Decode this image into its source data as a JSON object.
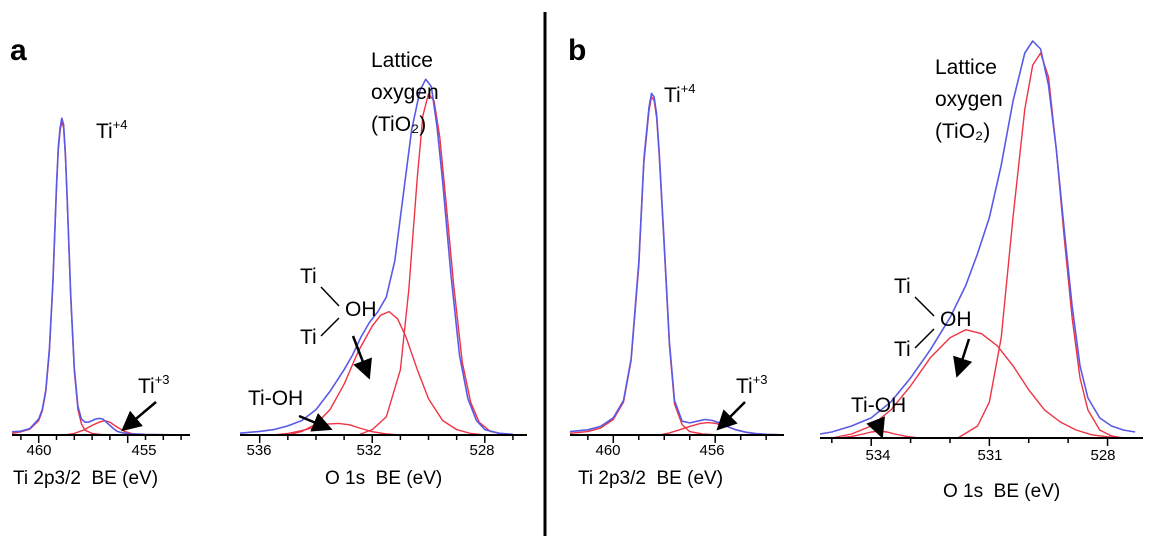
{
  "panels": [
    {
      "label": "a"
    },
    {
      "label": "b"
    }
  ],
  "colors": {
    "envelope": "#5a5ae6",
    "component": "#ee3344",
    "axis": "#000000"
  },
  "chart_data": [
    {
      "type": "line",
      "panel": "a",
      "xlabel": "Ti 2p3/2  BE (eV)",
      "xreversed": true,
      "xlim": [
        461.5,
        451.5
      ],
      "ticks": [
        460,
        455
      ],
      "annotations": [
        {
          "text": "Ti",
          "sup": "+4",
          "x": 458.7
        },
        {
          "text": "Ti",
          "sup": "+3",
          "x": 456.3
        }
      ],
      "series": [
        {
          "role": "envelope",
          "x": [
            461.5,
            461,
            460.5,
            460,
            459.8,
            459.6,
            459.4,
            459.2,
            459.0,
            458.9,
            458.8,
            458.7,
            458.6,
            458.5,
            458.4,
            458.2,
            458.0,
            457.8,
            457.6,
            457.4,
            457.2,
            457.0,
            456.8,
            456.6,
            456.4,
            456.2,
            456.0,
            455.8,
            455.6,
            455.4,
            455.0,
            454.0,
            453.0,
            452.0
          ],
          "y": [
            0.01,
            0.012,
            0.02,
            0.05,
            0.08,
            0.14,
            0.27,
            0.48,
            0.78,
            0.9,
            0.96,
            0.99,
            0.97,
            0.88,
            0.74,
            0.44,
            0.21,
            0.09,
            0.05,
            0.04,
            0.04,
            0.045,
            0.05,
            0.052,
            0.05,
            0.04,
            0.03,
            0.02,
            0.012,
            0.008,
            0.004,
            0.002,
            0.001,
            0.0
          ]
        },
        {
          "role": "component",
          "name": "Ti+4",
          "x": [
            461.5,
            461,
            460.5,
            460,
            459.8,
            459.6,
            459.4,
            459.2,
            459.0,
            458.9,
            458.8,
            458.7,
            458.6,
            458.5,
            458.4,
            458.2,
            458.0,
            457.8,
            457.6,
            457.4,
            457.0,
            456.5,
            456.0,
            455.0,
            454.0,
            453.0,
            452.0
          ],
          "y": [
            0.005,
            0.01,
            0.018,
            0.045,
            0.075,
            0.135,
            0.26,
            0.47,
            0.77,
            0.89,
            0.95,
            0.98,
            0.96,
            0.87,
            0.73,
            0.43,
            0.2,
            0.08,
            0.035,
            0.015,
            0.005,
            0.002,
            0.001,
            0.0,
            0.0,
            0.0,
            0.0
          ]
        },
        {
          "role": "component",
          "name": "Ti+3",
          "x": [
            458.5,
            458,
            457.5,
            457,
            456.6,
            456.3,
            456.0,
            455.6,
            455.2,
            454.8,
            454.4,
            454.0
          ],
          "y": [
            0.0,
            0.005,
            0.015,
            0.03,
            0.04,
            0.045,
            0.04,
            0.025,
            0.012,
            0.005,
            0.002,
            0.0
          ]
        }
      ]
    },
    {
      "type": "line",
      "panel": "a",
      "xlabel": "O 1s  BE (eV)",
      "xreversed": true,
      "xlim": [
        536.7,
        526.5
      ],
      "ticks": [
        536,
        532,
        528
      ],
      "annotations": [
        {
          "text": "Lattice",
          "x": 530.2
        },
        {
          "text": "oxygen",
          "x": 530.2
        },
        {
          "text": "(TiO₂)",
          "x": 530.2
        },
        {
          "text": "Ti",
          "x": 532.5
        },
        {
          "text": "OH",
          "x": 531.9
        },
        {
          "text": "Ti",
          "x": 532.5
        },
        {
          "text": "Ti-OH",
          "x": 533.2
        }
      ],
      "series": [
        {
          "role": "envelope",
          "x": [
            536.7,
            536,
            535.5,
            535,
            534.5,
            534,
            533.5,
            533,
            532.7,
            532.4,
            532.1,
            531.8,
            531.5,
            531.2,
            530.9,
            530.6,
            530.3,
            530.1,
            529.9,
            529.7,
            529.5,
            529.2,
            528.9,
            528.6,
            528.3,
            528.0,
            527.5,
            527.0
          ],
          "y": [
            0.005,
            0.01,
            0.015,
            0.025,
            0.04,
            0.07,
            0.12,
            0.18,
            0.22,
            0.27,
            0.31,
            0.34,
            0.38,
            0.48,
            0.66,
            0.84,
            0.95,
            0.98,
            0.96,
            0.85,
            0.7,
            0.44,
            0.22,
            0.1,
            0.04,
            0.015,
            0.005,
            0.002
          ]
        },
        {
          "role": "component",
          "name": "Lattice oxygen",
          "x": [
            532.5,
            532,
            531.5,
            531,
            530.7,
            530.4,
            530.2,
            530.0,
            529.8,
            529.6,
            529.4,
            529.1,
            528.8,
            528.5,
            528.2,
            527.8,
            527.3,
            526.8
          ],
          "y": [
            0.0,
            0.015,
            0.05,
            0.18,
            0.4,
            0.71,
            0.88,
            0.94,
            0.92,
            0.82,
            0.66,
            0.41,
            0.2,
            0.09,
            0.035,
            0.01,
            0.002,
            0.0
          ]
        },
        {
          "role": "component",
          "name": "Ti-OH-Ti",
          "x": [
            535,
            534.5,
            534,
            533.5,
            533,
            532.5,
            532.0,
            531.7,
            531.4,
            531.1,
            530.8,
            530.4,
            530.0,
            529.5,
            529.0,
            528.5,
            528.0
          ],
          "y": [
            0.0,
            0.01,
            0.03,
            0.07,
            0.14,
            0.23,
            0.3,
            0.33,
            0.34,
            0.32,
            0.27,
            0.18,
            0.1,
            0.04,
            0.015,
            0.004,
            0.0
          ]
        },
        {
          "role": "component",
          "name": "Ti-OH",
          "x": [
            535.5,
            535,
            534.5,
            534,
            533.6,
            533.2,
            532.8,
            532.4,
            532.0,
            531.5,
            531.0
          ],
          "y": [
            0.0,
            0.004,
            0.012,
            0.022,
            0.03,
            0.032,
            0.028,
            0.018,
            0.009,
            0.003,
            0.0
          ]
        }
      ]
    },
    {
      "type": "line",
      "panel": "b",
      "xlabel": "Ti 2p3/2  BE (eV)",
      "xreversed": true,
      "xlim": [
        461.7,
        453.3
      ],
      "ticks": [
        460,
        456
      ],
      "annotations": [
        {
          "text": "Ti",
          "sup": "+4",
          "x": 458.4
        },
        {
          "text": "Ti",
          "sup": "+3",
          "x": 455.9
        }
      ],
      "series": [
        {
          "role": "envelope",
          "x": [
            461.7,
            461,
            460.5,
            460,
            459.6,
            459.3,
            459.0,
            458.8,
            458.6,
            458.5,
            458.4,
            458.3,
            458.2,
            458.0,
            457.8,
            457.6,
            457.3,
            457.0,
            456.7,
            456.4,
            456.1,
            455.8,
            455.5,
            455.2,
            454.8,
            454.4,
            454.0,
            453.5
          ],
          "y": [
            0.01,
            0.015,
            0.025,
            0.05,
            0.1,
            0.22,
            0.5,
            0.8,
            0.95,
            0.99,
            0.98,
            0.93,
            0.82,
            0.55,
            0.27,
            0.1,
            0.04,
            0.035,
            0.04,
            0.045,
            0.042,
            0.034,
            0.024,
            0.015,
            0.008,
            0.004,
            0.002,
            0.001
          ]
        },
        {
          "role": "component",
          "name": "Ti+4",
          "x": [
            461.7,
            461,
            460.5,
            460,
            459.6,
            459.3,
            459.0,
            458.8,
            458.6,
            458.5,
            458.4,
            458.3,
            458.2,
            458.0,
            457.8,
            457.6,
            457.3,
            457.0,
            456.5,
            456.0,
            455.0,
            454.0
          ],
          "y": [
            0.005,
            0.01,
            0.02,
            0.045,
            0.095,
            0.215,
            0.49,
            0.79,
            0.94,
            0.98,
            0.97,
            0.92,
            0.81,
            0.54,
            0.26,
            0.09,
            0.03,
            0.01,
            0.003,
            0.001,
            0.0,
            0.0
          ]
        },
        {
          "role": "component",
          "name": "Ti+3",
          "x": [
            458.2,
            457.8,
            457.4,
            457.0,
            456.6,
            456.3,
            456.0,
            455.6,
            455.2,
            454.8,
            454.4,
            454.0
          ],
          "y": [
            0.0,
            0.006,
            0.015,
            0.025,
            0.033,
            0.036,
            0.034,
            0.026,
            0.016,
            0.008,
            0.003,
            0.0
          ]
        }
      ]
    },
    {
      "type": "line",
      "panel": "b",
      "xlabel": "O 1s  BE (eV)",
      "xreversed": true,
      "xlim": [
        535.3,
        527.1
      ],
      "ticks": [
        534,
        531,
        528
      ],
      "annotations": [
        {
          "text": "Lattice",
          "x": 529.6
        },
        {
          "text": "oxygen",
          "x": 529.6
        },
        {
          "text": "(TiO₂)",
          "x": 529.6
        },
        {
          "text": "Ti",
          "x": 532.2
        },
        {
          "text": "OH",
          "x": 531.6
        },
        {
          "text": "Ti",
          "x": 532.2
        },
        {
          "text": "Ti-OH",
          "x": 533.8
        }
      ],
      "series": [
        {
          "role": "envelope",
          "x": [
            535.3,
            535,
            534.5,
            534,
            533.5,
            533,
            532.5,
            532.0,
            531.6,
            531.3,
            531.0,
            530.7,
            530.4,
            530.1,
            529.9,
            529.7,
            529.5,
            529.3,
            529.1,
            528.9,
            528.7,
            528.5,
            528.2,
            527.9,
            527.6,
            527.3
          ],
          "y": [
            0.01,
            0.015,
            0.03,
            0.05,
            0.09,
            0.15,
            0.22,
            0.3,
            0.38,
            0.46,
            0.55,
            0.68,
            0.84,
            0.96,
            0.99,
            0.97,
            0.88,
            0.72,
            0.52,
            0.33,
            0.18,
            0.1,
            0.05,
            0.03,
            0.02,
            0.015
          ]
        },
        {
          "role": "component",
          "name": "Lattice oxygen",
          "x": [
            531.8,
            531.3,
            531.0,
            530.7,
            530.4,
            530.1,
            529.9,
            529.7,
            529.5,
            529.3,
            529.1,
            528.9,
            528.7,
            528.5,
            528.2,
            527.9,
            527.6
          ],
          "y": [
            0.0,
            0.03,
            0.09,
            0.25,
            0.55,
            0.82,
            0.93,
            0.96,
            0.9,
            0.72,
            0.5,
            0.3,
            0.15,
            0.07,
            0.02,
            0.005,
            0.0
          ]
        },
        {
          "role": "component",
          "name": "Ti-OH-Ti",
          "x": [
            535,
            534.5,
            534,
            533.5,
            533,
            532.5,
            532.0,
            531.6,
            531.2,
            530.8,
            530.4,
            530.0,
            529.6,
            529.2,
            528.8,
            528.4,
            528.0,
            527.6
          ],
          "y": [
            0.0,
            0.01,
            0.03,
            0.07,
            0.13,
            0.2,
            0.25,
            0.27,
            0.26,
            0.23,
            0.18,
            0.12,
            0.07,
            0.04,
            0.02,
            0.008,
            0.003,
            0.0
          ]
        },
        {
          "role": "component",
          "name": "Ti-OH",
          "x": [
            534.8,
            534.5,
            534.2,
            534.0,
            533.8,
            533.6,
            533.4,
            533.1,
            532.8
          ],
          "y": [
            0.0,
            0.004,
            0.01,
            0.015,
            0.017,
            0.015,
            0.01,
            0.004,
            0.0
          ]
        }
      ]
    }
  ]
}
